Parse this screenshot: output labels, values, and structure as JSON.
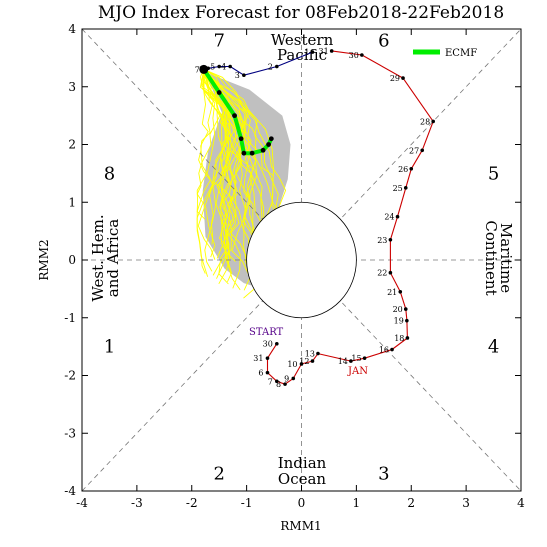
{
  "chart_data": {
    "type": "line",
    "title": "MJO Index Forecast for 08Feb2018-22Feb2018",
    "xlabel": "RMM1",
    "ylabel": "RMM2",
    "xlim": [
      -4,
      4
    ],
    "ylim": [
      -4,
      4
    ],
    "x_ticks": [
      "-4",
      "-3",
      "-2",
      "-1",
      "0",
      "1",
      "2",
      "3",
      "4"
    ],
    "y_ticks": [
      "-4",
      "-3",
      "-2",
      "-1",
      "0",
      "1",
      "2",
      "3",
      "4"
    ],
    "phases": [
      {
        "label": "1",
        "x": -3.5,
        "y": -1.5
      },
      {
        "label": "2",
        "x": -1.5,
        "y": -3.7
      },
      {
        "label": "3",
        "x": 1.5,
        "y": -3.7
      },
      {
        "label": "4",
        "x": 3.5,
        "y": -1.5
      },
      {
        "label": "5",
        "x": 3.5,
        "y": 1.5
      },
      {
        "label": "6",
        "x": 1.5,
        "y": 3.8
      },
      {
        "label": "7",
        "x": -1.5,
        "y": 3.8
      },
      {
        "label": "8",
        "x": -3.5,
        "y": 1.5
      }
    ],
    "regions": {
      "indian_ocean": [
        "Indian",
        "Ocean"
      ],
      "western_pacific": [
        "Western",
        "Pacific"
      ],
      "maritime_continent": [
        "Maritime",
        "Continent"
      ],
      "west_hem_africa": [
        "West. Hem.",
        "and Africa"
      ]
    },
    "labels": {
      "start": "START",
      "jan": "JAN"
    },
    "legend": {
      "label": "ECMF",
      "color": "#00ee00",
      "position": "top-right"
    },
    "colors": {
      "jan": "#cc0000",
      "feb": "#000080",
      "ensemble": "#ffff00",
      "ecmf": "#00ee00",
      "spread": "#c0c0c0"
    },
    "series": [
      {
        "name": "JAN",
        "color": "#cc0000",
        "points": [
          {
            "label": "30",
            "x": -0.45,
            "y": -1.45
          },
          {
            "label": "31",
            "x": -0.62,
            "y": -1.7
          },
          {
            "label": "6",
            "x": -0.62,
            "y": -1.95
          },
          {
            "label": "7",
            "x": -0.45,
            "y": -2.1
          },
          {
            "label": "8",
            "x": -0.3,
            "y": -2.15
          },
          {
            "label": "9",
            "x": -0.15,
            "y": -2.05
          },
          {
            "label": "10",
            "x": 0.0,
            "y": -1.8
          },
          {
            "label": "12",
            "x": 0.2,
            "y": -1.75
          },
          {
            "label": "13",
            "x": 0.3,
            "y": -1.62
          },
          {
            "label": "14",
            "x": 0.9,
            "y": -1.75
          },
          {
            "label": "15",
            "x": 1.15,
            "y": -1.7
          },
          {
            "label": "16",
            "x": 1.65,
            "y": -1.55
          },
          {
            "label": "18",
            "x": 1.93,
            "y": -1.35
          },
          {
            "label": "19",
            "x": 1.92,
            "y": -1.05
          },
          {
            "label": "20",
            "x": 1.9,
            "y": -0.85
          },
          {
            "label": "21",
            "x": 1.8,
            "y": -0.55
          },
          {
            "label": "22",
            "x": 1.62,
            "y": -0.22
          },
          {
            "label": "23",
            "x": 1.62,
            "y": 0.35
          },
          {
            "label": "24",
            "x": 1.75,
            "y": 0.75
          },
          {
            "label": "25",
            "x": 1.9,
            "y": 1.25
          },
          {
            "label": "26",
            "x": 2.0,
            "y": 1.58
          },
          {
            "label": "27",
            "x": 2.2,
            "y": 1.9
          },
          {
            "label": "28",
            "x": 2.4,
            "y": 2.4
          },
          {
            "label": "29",
            "x": 1.85,
            "y": 3.15
          },
          {
            "label": "30",
            "x": 1.1,
            "y": 3.55
          },
          {
            "label": "31",
            "x": 0.55,
            "y": 3.62
          }
        ]
      },
      {
        "name": "FEB",
        "color": "#000080",
        "points": [
          {
            "label": "1",
            "x": 0.2,
            "y": 3.6
          },
          {
            "label": "2",
            "x": -0.45,
            "y": 3.35
          },
          {
            "label": "3",
            "x": -1.05,
            "y": 3.2
          },
          {
            "label": "4",
            "x": -1.3,
            "y": 3.35
          },
          {
            "label": "5",
            "x": -1.5,
            "y": 3.35
          },
          {
            "label": "6",
            "x": -1.7,
            "y": 3.32
          },
          {
            "label": "7",
            "x": -1.78,
            "y": 3.3
          }
        ]
      },
      {
        "name": "ECMF",
        "color": "#00ee00",
        "points": [
          {
            "x": -1.78,
            "y": 3.3
          },
          {
            "x": -1.5,
            "y": 2.9
          },
          {
            "x": -1.22,
            "y": 2.5
          },
          {
            "x": -1.1,
            "y": 2.1
          },
          {
            "x": -1.05,
            "y": 1.85
          },
          {
            "x": -0.9,
            "y": 1.85
          },
          {
            "x": -0.7,
            "y": 1.9
          },
          {
            "x": -0.6,
            "y": 2.0
          },
          {
            "x": -0.55,
            "y": 2.1
          }
        ]
      }
    ]
  }
}
